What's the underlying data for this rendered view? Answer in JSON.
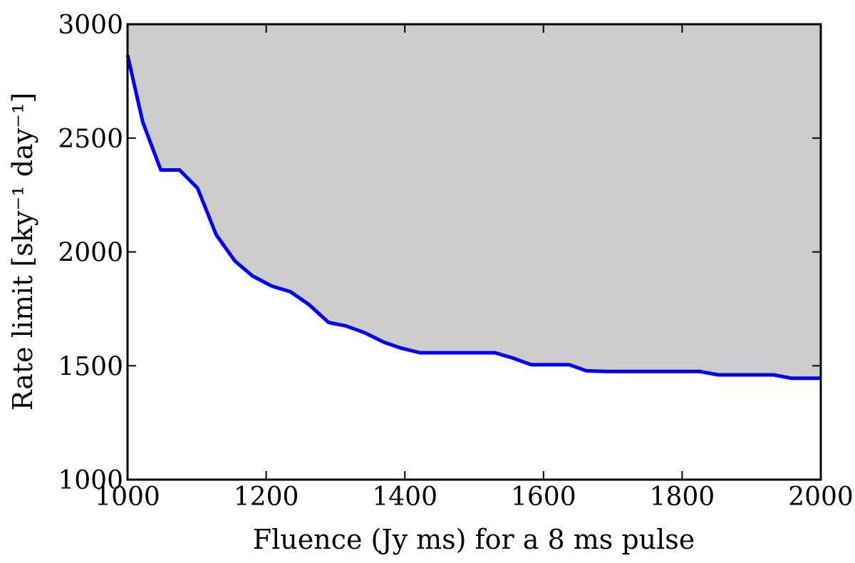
{
  "chart_data": {
    "type": "area",
    "title": "",
    "xlabel": "Fluence (Jy ms) for a 8 ms pulse",
    "ylabel": "Rate limit [sky⁻¹ day⁻¹]",
    "xlim": [
      1000,
      2000
    ],
    "ylim": [
      1000,
      3000
    ],
    "xticks": [
      1000,
      1200,
      1400,
      1600,
      1800,
      2000
    ],
    "yticks": [
      1000,
      1500,
      2000,
      2500,
      3000
    ],
    "xtick_labels": [
      "1000",
      "1200",
      "1400",
      "1600",
      "1800",
      "2000"
    ],
    "ytick_labels": [
      "1000",
      "1500",
      "2000",
      "2500",
      "3000"
    ],
    "grid": false,
    "legend": "none",
    "fill_region": "above curve (excluded)",
    "colors": {
      "line": "#0000ff",
      "fill": "#cccccc",
      "frame": "#000000"
    },
    "series": [
      {
        "x": [
          1000,
          1022,
          1048,
          1075,
          1101,
          1128,
          1155,
          1180,
          1208,
          1235,
          1262,
          1290,
          1315,
          1342,
          1370,
          1395,
          1422,
          1450,
          1477,
          1502,
          1530,
          1555,
          1582,
          1610,
          1637,
          1662,
          1690,
          1717,
          1745,
          1772,
          1798,
          1825,
          1852,
          1878,
          1905,
          1932,
          1958,
          1985,
          2000
        ],
        "y": [
          2865,
          2570,
          2360,
          2360,
          2280,
          2075,
          1960,
          1895,
          1850,
          1825,
          1768,
          1690,
          1675,
          1645,
          1603,
          1577,
          1557,
          1557,
          1557,
          1557,
          1557,
          1535,
          1505,
          1505,
          1505,
          1478,
          1475,
          1475,
          1475,
          1475,
          1475,
          1475,
          1460,
          1460,
          1460,
          1460,
          1445,
          1445,
          1445
        ]
      }
    ]
  }
}
